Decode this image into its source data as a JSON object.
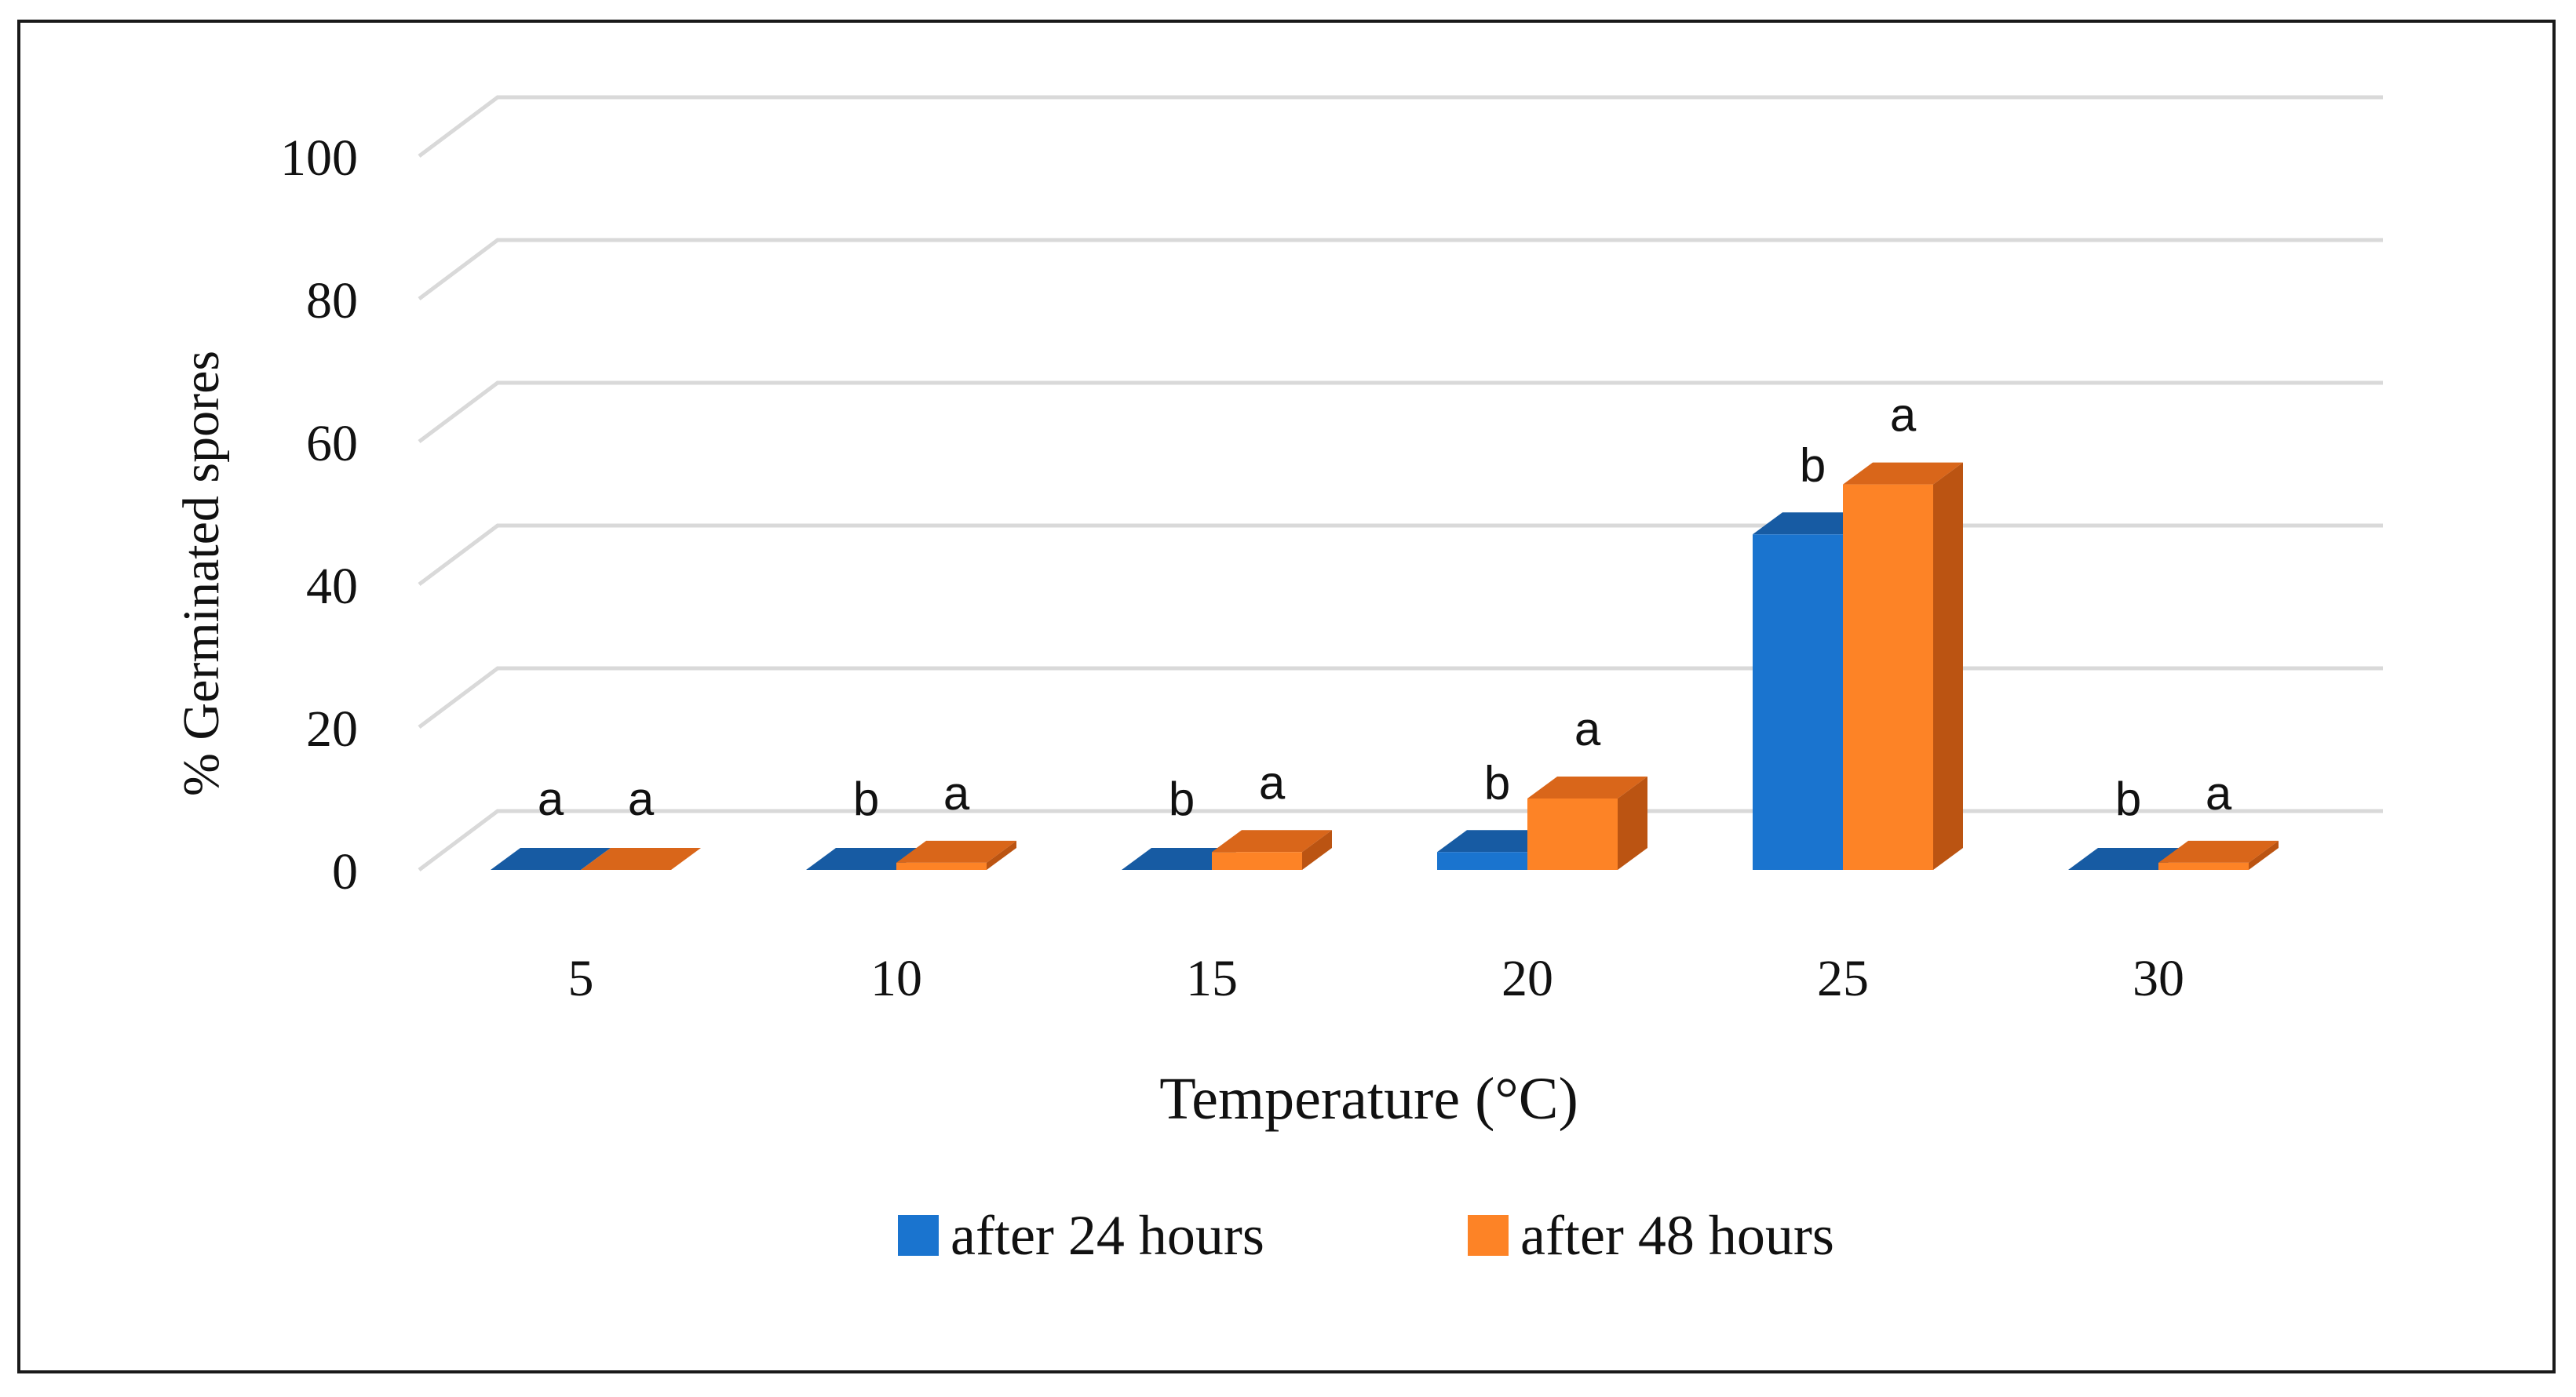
{
  "chart_data": {
    "type": "bar",
    "title": "",
    "xlabel": "Temperature (°C)",
    "ylabel": "% Germinated spores",
    "categories": [
      "5",
      "10",
      "15",
      "20",
      "25",
      "30"
    ],
    "ylim": [
      0,
      100
    ],
    "yticks": [
      "0",
      "20",
      "40",
      "60",
      "80",
      "100"
    ],
    "grid": true,
    "legend_position": "bottom",
    "series": [
      {
        "name": "after 24 hours",
        "values": [
          0,
          0,
          0,
          2.5,
          47,
          0
        ],
        "labels": [
          "a",
          "b",
          "b",
          "b",
          "b",
          "b"
        ]
      },
      {
        "name": "after 48 hours",
        "values": [
          0,
          1,
          2.5,
          10,
          54,
          1
        ],
        "labels": [
          "a",
          "a",
          "a",
          "a",
          "a",
          "a"
        ]
      }
    ],
    "colors": {
      "after 24 hours": {
        "front": "#1a74cf",
        "top": "#175ba3",
        "side": "#104a87"
      },
      "after 48 hours": {
        "front": "#fd8326",
        "top": "#d9661a",
        "side": "#bb5412"
      },
      "grid": "#d9d9d9"
    }
  }
}
